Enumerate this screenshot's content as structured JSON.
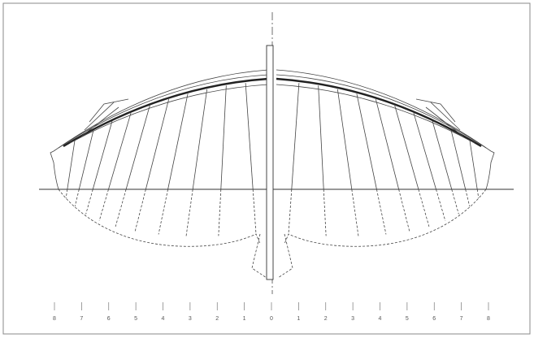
{
  "stations": [
    "8",
    "7",
    "6",
    "5",
    "4",
    "3",
    "2",
    "1",
    "0",
    "1",
    "2",
    "3",
    "4",
    "5",
    "6",
    "7",
    "8"
  ]
}
